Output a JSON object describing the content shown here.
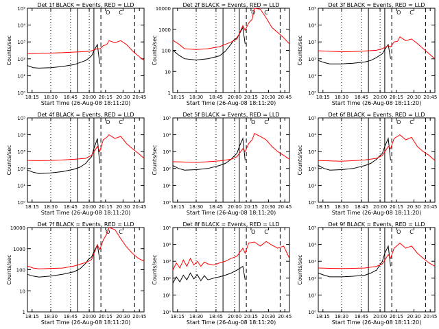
{
  "chart_data": {
    "type": "line",
    "layout": "3x3 grid",
    "colors": {
      "events": "#000000",
      "lld": "#ff0000"
    },
    "shared_xlabel": "Start Time (26-Aug-08 18:11:20)",
    "shared_xtick_labels": [
      "18:15",
      "18:30",
      "18:45",
      "20:00",
      "20:15",
      "20:30",
      "20:45"
    ],
    "ylabel": "Counts/sec",
    "yscale": "log",
    "markers": [
      "O",
      "C"
    ],
    "panels": [
      {
        "title": "Det 1f BLACK = Events, RED = LLD",
        "ylim": [
          1,
          100000
        ],
        "ytick_labels": [
          "10⁰",
          "10¹",
          "10²",
          "10³",
          "10⁴",
          "10⁵"
        ],
        "series": [
          {
            "name": "BLACK = Events",
            "color": "#000000",
            "x": [
              0,
              0.05,
              0.1,
              0.2,
              0.3,
              0.4,
              0.45,
              0.5,
              0.52,
              0.55,
              0.57,
              0.6,
              0.62
            ],
            "y": [
              40,
              30,
              28,
              30,
              35,
              45,
              60,
              80,
              100,
              150,
              300,
              700,
              50
            ]
          },
          {
            "name": "RED = LLD",
            "color": "#ff0000",
            "x": [
              0,
              0.1,
              0.2,
              0.3,
              0.4,
              0.5,
              0.55,
              0.6,
              0.62,
              0.65,
              0.68,
              0.7,
              0.75,
              0.8,
              0.85,
              0.9,
              0.95,
              1.0
            ],
            "y": [
              200,
              210,
              220,
              230,
              250,
              270,
              300,
              400,
              380,
              600,
              700,
              1200,
              900,
              1200,
              700,
              300,
              150,
              80
            ]
          }
        ]
      },
      {
        "title": "Det 2f BLACK = Events, RED = LLD",
        "ylim": [
          1,
          10000
        ],
        "ytick_labels": [
          "1",
          "10",
          "100",
          "1000",
          "10000"
        ],
        "series": [
          {
            "name": "BLACK = Events",
            "color": "#000000",
            "x": [
              0,
              0.05,
              0.1,
              0.2,
              0.3,
              0.4,
              0.45,
              0.5,
              0.52,
              0.55,
              0.57,
              0.6,
              0.62
            ],
            "y": [
              100,
              60,
              40,
              35,
              40,
              55,
              90,
              200,
              300,
              400,
              600,
              1200,
              200
            ]
          },
          {
            "name": "RED = LLD",
            "color": "#ff0000",
            "x": [
              0,
              0.05,
              0.1,
              0.2,
              0.3,
              0.4,
              0.5,
              0.55,
              0.6,
              0.62,
              0.65,
              0.68,
              0.7,
              0.75,
              0.8,
              0.85,
              0.9,
              0.95,
              1.0
            ],
            "y": [
              300,
              200,
              120,
              110,
              120,
              150,
              250,
              350,
              1500,
              900,
              2000,
              3000,
              10000,
              9000,
              3500,
              1200,
              700,
              400,
              200
            ]
          }
        ]
      },
      {
        "title": "Det 3f BLACK = Events, RED = LLD",
        "ylim": [
          1,
          100000
        ],
        "ytick_labels": [
          "10⁰",
          "10¹",
          "10²",
          "10³",
          "10⁴",
          "10⁵"
        ],
        "series": [
          {
            "name": "BLACK = Events",
            "color": "#000000",
            "x": [
              0,
              0.05,
              0.1,
              0.2,
              0.3,
              0.4,
              0.45,
              0.5,
              0.52,
              0.55,
              0.57,
              0.6,
              0.62
            ],
            "y": [
              80,
              60,
              50,
              50,
              55,
              65,
              80,
              120,
              150,
              200,
              350,
              700,
              100
            ]
          },
          {
            "name": "RED = LLD",
            "color": "#ff0000",
            "x": [
              0,
              0.1,
              0.2,
              0.3,
              0.4,
              0.5,
              0.55,
              0.6,
              0.62,
              0.65,
              0.68,
              0.7,
              0.75,
              0.8,
              0.85,
              0.9,
              0.95,
              1.0
            ],
            "y": [
              300,
              280,
              260,
              270,
              290,
              320,
              400,
              600,
              500,
              1000,
              1100,
              2000,
              1200,
              1500,
              800,
              400,
              200,
              100
            ]
          }
        ]
      },
      {
        "title": "Det 4f BLACK = Events, RED = LLD",
        "ylim": [
          1,
          100000
        ],
        "ytick_labels": [
          "10⁰",
          "10¹",
          "10²",
          "10³",
          "10⁴",
          "10⁵"
        ],
        "series": [
          {
            "name": "BLACK = Events",
            "color": "#000000",
            "x": [
              0,
              0.05,
              0.1,
              0.2,
              0.3,
              0.4,
              0.45,
              0.5,
              0.52,
              0.55,
              0.57,
              0.6,
              0.62
            ],
            "y": [
              80,
              60,
              50,
              55,
              65,
              90,
              120,
              200,
              300,
              500,
              1500,
              6000,
              200
            ]
          },
          {
            "name": "RED = LLD",
            "color": "#ff0000",
            "x": [
              0,
              0.1,
              0.2,
              0.3,
              0.4,
              0.5,
              0.55,
              0.6,
              0.62,
              0.65,
              0.68,
              0.7,
              0.75,
              0.8,
              0.85,
              0.9,
              0.95,
              1.0
            ],
            "y": [
              300,
              290,
              300,
              320,
              350,
              400,
              600,
              2000,
              1000,
              5000,
              7000,
              10000,
              6000,
              8000,
              3000,
              1500,
              800,
              400
            ]
          }
        ]
      },
      {
        "title": "Det 5f BLACK = Events, RED = LLD",
        "ylim": [
          1,
          100000
        ],
        "ytick_labels": [
          "10⁰",
          "10¹",
          "10²",
          "10³",
          "10⁴",
          "10⁵"
        ],
        "series": [
          {
            "name": "BLACK = Events",
            "color": "#000000",
            "x": [
              0,
              0.05,
              0.1,
              0.2,
              0.3,
              0.4,
              0.45,
              0.5,
              0.52,
              0.55,
              0.57,
              0.6,
              0.62
            ],
            "y": [
              150,
              100,
              80,
              85,
              100,
              150,
              200,
              350,
              500,
              800,
              2000,
              6000,
              300
            ]
          },
          {
            "name": "RED = LLD",
            "color": "#ff0000",
            "x": [
              0,
              0.1,
              0.2,
              0.3,
              0.4,
              0.5,
              0.55,
              0.6,
              0.62,
              0.65,
              0.68,
              0.7,
              0.75,
              0.8,
              0.85,
              0.9,
              0.95,
              1.0
            ],
            "y": [
              250,
              240,
              230,
              250,
              280,
              350,
              500,
              1500,
              1000,
              3000,
              5000,
              12000,
              8000,
              5000,
              2000,
              1000,
              600,
              350
            ]
          }
        ]
      },
      {
        "title": "Det 6f BLACK = Events, RED = LLD",
        "ylim": [
          1,
          100000
        ],
        "ytick_labels": [
          "10⁰",
          "10¹",
          "10²",
          "10³",
          "10⁴",
          "10⁵"
        ],
        "series": [
          {
            "name": "BLACK = Events",
            "color": "#000000",
            "x": [
              0,
              0.05,
              0.1,
              0.2,
              0.3,
              0.4,
              0.45,
              0.5,
              0.52,
              0.55,
              0.57,
              0.6,
              0.62
            ],
            "y": [
              150,
              100,
              80,
              85,
              100,
              150,
              200,
              350,
              500,
              800,
              2000,
              6000,
              300
            ]
          },
          {
            "name": "RED = LLD",
            "color": "#ff0000",
            "x": [
              0,
              0.1,
              0.2,
              0.3,
              0.4,
              0.5,
              0.55,
              0.6,
              0.62,
              0.65,
              0.68,
              0.7,
              0.75,
              0.8,
              0.85,
              0.9,
              0.95,
              1.0
            ],
            "y": [
              300,
              280,
              270,
              290,
              320,
              400,
              600,
              2000,
              1500,
              6000,
              8000,
              10000,
              5000,
              7000,
              2000,
              1000,
              600,
              300
            ]
          }
        ]
      },
      {
        "title": "Det 7f BLACK = Events, RED = LLD",
        "ylim": [
          1,
          10000
        ],
        "ytick_labels": [
          "1",
          "10",
          "100",
          "1000",
          "10000"
        ],
        "series": [
          {
            "name": "BLACK = Events",
            "color": "#000000",
            "x": [
              0,
              0.05,
              0.1,
              0.2,
              0.3,
              0.4,
              0.45,
              0.5,
              0.52,
              0.55,
              0.57,
              0.6,
              0.62
            ],
            "y": [
              60,
              50,
              45,
              50,
              60,
              80,
              110,
              200,
              300,
              400,
              700,
              1500,
              300
            ]
          },
          {
            "name": "RED = LLD",
            "color": "#ff0000",
            "x": [
              0,
              0.05,
              0.1,
              0.2,
              0.3,
              0.4,
              0.5,
              0.55,
              0.6,
              0.62,
              0.65,
              0.68,
              0.7,
              0.75,
              0.8,
              0.85,
              0.9,
              0.95,
              1.0
            ],
            "y": [
              150,
              120,
              110,
              115,
              120,
              150,
              220,
              300,
              1500,
              900,
              2500,
              5000,
              10000,
              8000,
              3000,
              1200,
              600,
              350,
              250
            ]
          }
        ]
      },
      {
        "title": "Det 8f BLACK = Events, RED = LLD",
        "ylim": [
          1,
          100000
        ],
        "ytick_labels": [
          "10⁰",
          "10¹",
          "10²",
          "10³",
          "10⁴",
          "10⁵"
        ],
        "series": [
          {
            "name": "BLACK = Events",
            "color": "#000000",
            "x": [
              0,
              0.03,
              0.06,
              0.09,
              0.12,
              0.15,
              0.18,
              0.21,
              0.24,
              0.27,
              0.3,
              0.35,
              0.4,
              0.45,
              0.5,
              0.55,
              0.6,
              0.62
            ],
            "y": [
              50,
              120,
              60,
              150,
              80,
              200,
              90,
              160,
              70,
              140,
              80,
              100,
              120,
              150,
              200,
              300,
              500,
              80
            ]
          },
          {
            "name": "RED = LLD",
            "color": "#ff0000",
            "x": [
              0,
              0.03,
              0.06,
              0.09,
              0.12,
              0.15,
              0.18,
              0.21,
              0.24,
              0.27,
              0.3,
              0.35,
              0.4,
              0.45,
              0.5,
              0.55,
              0.6,
              0.62,
              0.65,
              0.7,
              0.75,
              0.8,
              0.85,
              0.9,
              0.95,
              1.0
            ],
            "y": [
              300,
              800,
              400,
              1200,
              500,
              1500,
              600,
              1000,
              500,
              900,
              700,
              600,
              800,
              1000,
              1500,
              2000,
              6000,
              3000,
              12000,
              14000,
              8000,
              15000,
              9000,
              6000,
              8000,
              1500
            ]
          }
        ]
      },
      {
        "title": "Det 9f BLACK = Events, RED = LLD",
        "ylim": [
          1,
          100000
        ],
        "ytick_labels": [
          "10⁰",
          "10¹",
          "10²",
          "10³",
          "10⁴",
          "10⁵"
        ],
        "series": [
          {
            "name": "BLACK = Events",
            "color": "#000000",
            "x": [
              0,
              0.05,
              0.1,
              0.2,
              0.3,
              0.4,
              0.45,
              0.5,
              0.52,
              0.55,
              0.57,
              0.6,
              0.62
            ],
            "y": [
              200,
              150,
              120,
              120,
              130,
              150,
              200,
              300,
              500,
              1000,
              3000,
              8000,
              500
            ]
          },
          {
            "name": "RED = LLD",
            "color": "#ff0000",
            "x": [
              0,
              0.1,
              0.2,
              0.3,
              0.4,
              0.5,
              0.55,
              0.6,
              0.62,
              0.65,
              0.68,
              0.7,
              0.75,
              0.8,
              0.85,
              0.9,
              0.95,
              1.0
            ],
            "y": [
              400,
              380,
              370,
              380,
              400,
              500,
              700,
              2500,
              1500,
              6000,
              9000,
              12000,
              6000,
              8000,
              3000,
              1500,
              800,
              500
            ]
          }
        ]
      }
    ]
  }
}
